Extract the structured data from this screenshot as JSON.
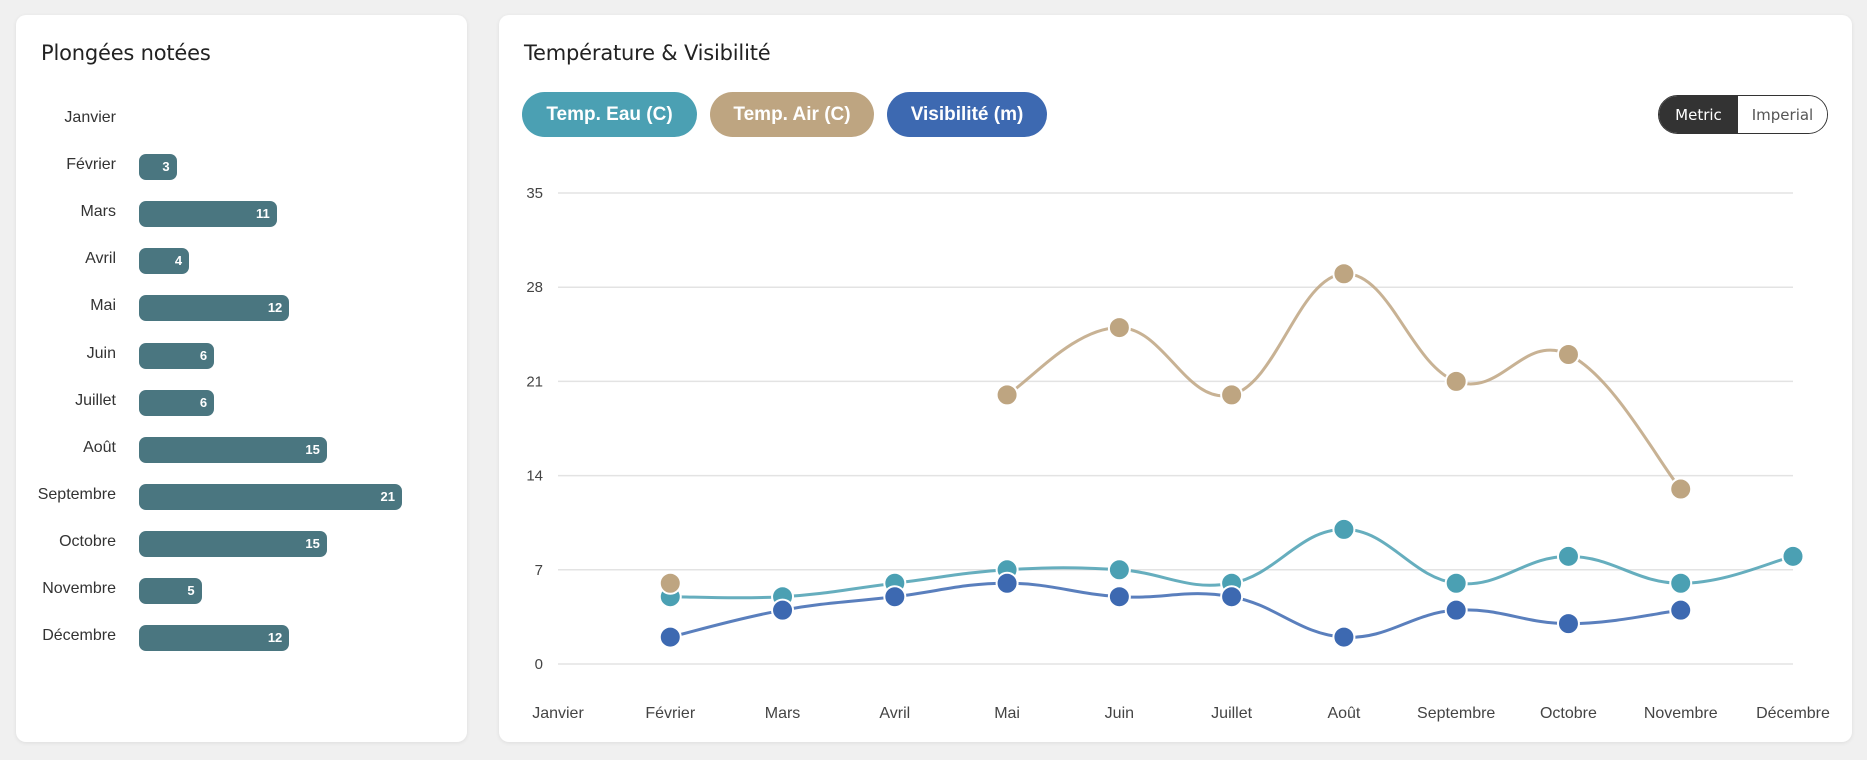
{
  "left_panel": {
    "title": "Plongées notées"
  },
  "right_panel": {
    "title": "Température & Visibilité",
    "legend_buttons": [
      {
        "label": "Temp. Eau (C)",
        "color": "#4ba0b3"
      },
      {
        "label": "Temp. Air (C)",
        "color": "#bea581"
      },
      {
        "label": "Visibilité (m)",
        "color": "#3d69b1"
      }
    ],
    "unit_toggle": {
      "options": [
        "Metric",
        "Imperial"
      ],
      "selected": "Metric"
    }
  },
  "chart_data": [
    {
      "type": "bar",
      "orientation": "horizontal",
      "title": "Plongées notées",
      "categories": [
        "Janvier",
        "Février",
        "Mars",
        "Avril",
        "Mai",
        "Juin",
        "Juillet",
        "Août",
        "Septembre",
        "Octobre",
        "Novembre",
        "Décembre"
      ],
      "values": [
        null,
        3,
        11,
        4,
        12,
        6,
        6,
        15,
        21,
        15,
        5,
        12
      ],
      "value_labels": [
        "",
        "3",
        "11",
        "4",
        "12",
        "6",
        "6",
        "15",
        "21",
        "15",
        "5",
        "12"
      ],
      "bar_color": "#4a7680",
      "xlim": [
        0,
        21
      ]
    },
    {
      "type": "line",
      "title": "Température & Visibilité",
      "categories": [
        "Janvier",
        "Février",
        "Mars",
        "Avril",
        "Mai",
        "Juin",
        "Juillet",
        "Août",
        "Septembre",
        "Octobre",
        "Novembre",
        "Décembre"
      ],
      "yticks": [
        "0",
        "7",
        "14",
        "21",
        "28",
        "35"
      ],
      "ylim": [
        0,
        35
      ],
      "grid": true,
      "smooth": true,
      "series": [
        {
          "name": "Temp. Air (C)",
          "color": "#bea581",
          "values": [
            null,
            6,
            null,
            null,
            20,
            25,
            20,
            29,
            21,
            23,
            13,
            null
          ]
        },
        {
          "name": "Temp. Eau (C)",
          "color": "#4ba0b3",
          "values": [
            null,
            5,
            5,
            6,
            7,
            7,
            6,
            10,
            6,
            8,
            6,
            8
          ]
        },
        {
          "name": "Visibilité (m)",
          "color": "#3d69b1",
          "values": [
            null,
            2,
            4,
            5,
            6,
            5,
            5,
            2,
            4,
            3,
            4,
            null
          ]
        }
      ]
    }
  ]
}
